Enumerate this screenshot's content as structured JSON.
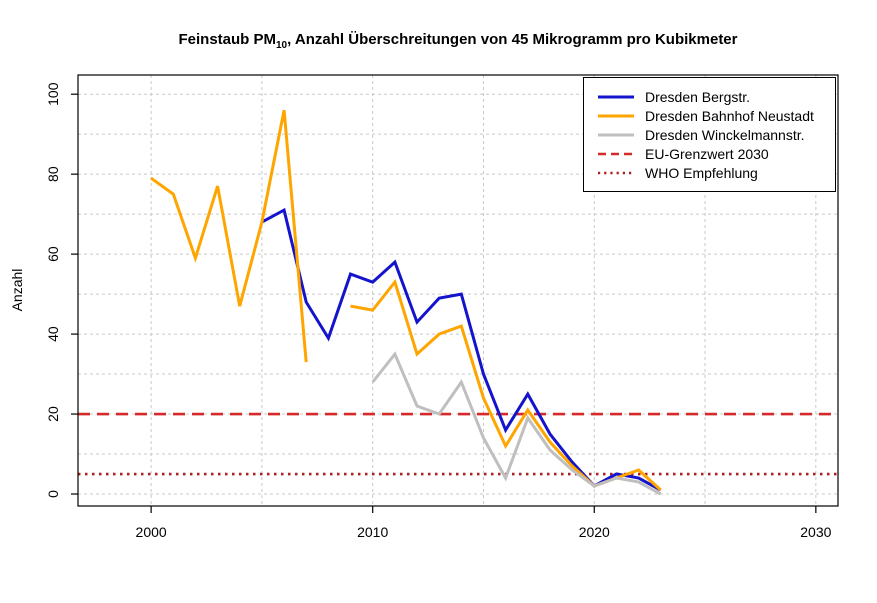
{
  "title": {
    "prefix": "Feinstaub PM",
    "subscript": "10",
    "suffix": ", Anzahl Überschreitungen von 45 Mikrogramm pro Kubikmeter"
  },
  "chart_data": {
    "type": "line",
    "title": "Feinstaub PM10, Anzahl Überschreitungen von 45 Mikrogramm pro Kubikmeter",
    "xlabel": "",
    "ylabel": "Anzahl",
    "x": [
      2000,
      2001,
      2002,
      2003,
      2004,
      2005,
      2006,
      2007,
      2008,
      2009,
      2010,
      2011,
      2012,
      2013,
      2014,
      2015,
      2016,
      2017,
      2018,
      2019,
      2020,
      2021,
      2022,
      2023
    ],
    "series": [
      {
        "name": "Dresden Bergstr.",
        "color": "#1414cc",
        "values": [
          null,
          null,
          null,
          null,
          null,
          68,
          71,
          48,
          39,
          55,
          53,
          58,
          43,
          49,
          50,
          30,
          16,
          25,
          15,
          8,
          2,
          5,
          4,
          1
        ]
      },
      {
        "name": "Dresden Bahnhof Neustadt",
        "color": "#ffa500",
        "values": [
          79,
          75,
          59,
          77,
          47,
          68,
          96,
          33,
          null,
          47,
          46,
          53,
          35,
          40,
          42,
          24,
          12,
          21,
          13,
          7,
          2,
          4,
          6,
          1
        ]
      },
      {
        "name": "Dresden Winckelmannstr.",
        "color": "#bfbfbf",
        "values": [
          null,
          null,
          null,
          null,
          null,
          null,
          null,
          null,
          null,
          null,
          28,
          35,
          22,
          20,
          28,
          14,
          4,
          19,
          11,
          6,
          2,
          4,
          3,
          0
        ]
      }
    ],
    "reference_lines": [
      {
        "name": "EU-Grenzwert 2030",
        "value": 20,
        "color": "#d42a2a",
        "style": "dashed"
      },
      {
        "name": "WHO Empfehlung",
        "value": 5,
        "color": "#ac2020",
        "style": "dotted"
      }
    ],
    "xlim": [
      1996.7,
      2031.0
    ],
    "ylim": [
      -3,
      104.8
    ],
    "x_ticks": [
      2000,
      2010,
      2020,
      2030
    ],
    "y_ticks": [
      0,
      20,
      40,
      60,
      80,
      100
    ],
    "x_gridlines": [
      2000,
      2005,
      2010,
      2015,
      2020,
      2025,
      2030
    ],
    "y_gridlines": [
      0,
      10,
      20,
      30,
      40,
      50,
      60,
      70,
      80,
      90,
      100
    ],
    "grid": true,
    "gridline_color": "#c8c8c8",
    "legend_position": "top-right"
  }
}
